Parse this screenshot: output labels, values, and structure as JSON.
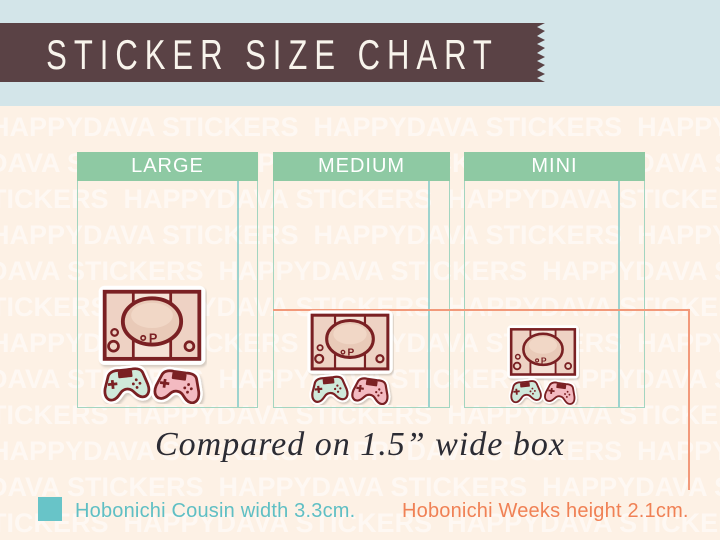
{
  "banner": {
    "title": "STICKER SIZE CHART"
  },
  "watermark": {
    "text": "HAPPYDAVA STICKERS"
  },
  "columns": [
    {
      "label": "LARGE"
    },
    {
      "label": "MEDIUM"
    },
    {
      "label": "MINI"
    }
  ],
  "caption": {
    "text": "Compared on 1.5” wide box"
  },
  "legend": {
    "cousin_label": "Hobonichi Cousin width 3.3cm.",
    "weeks_label": "Hobonichi Weeks height 2.1cm."
  },
  "sticker": {
    "console_letter": "P"
  },
  "colors": {
    "banner_brown": "#5a4245",
    "sky_blue": "#d3e5e9",
    "cream_background": "#fdf1e5",
    "header_green": "#8ec9a3",
    "box_border_teal": "#a3d5c0",
    "cousin_line_teal": "#84ccc8",
    "weeks_orange": "#f08155",
    "sticker_maroon": "#7a2023",
    "controller_mint": "#cfe9da",
    "controller_pink": "#f3bac1"
  }
}
